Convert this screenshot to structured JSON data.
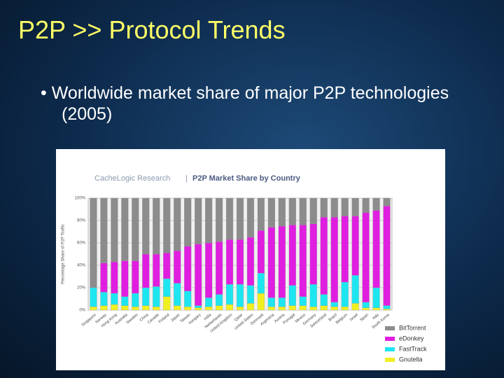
{
  "slide": {
    "title": "P2P >> Protocol Trends",
    "bullet": "Worldwide market share of major P2P technologies (2005)"
  },
  "chart_data": {
    "type": "stacked_bar",
    "source": "CacheLogic Research",
    "title": "P2P Market Share by Country",
    "y_label": "Percentage Share of P2P Traffic",
    "categories": [
      "Singapore",
      "Norway",
      "Hong Kong",
      "Australia",
      "Sweden",
      "China",
      "Canada",
      "Finland",
      "Japan",
      "Taiwan",
      "Hungary",
      "India",
      "Netherlands",
      "United Kingdom",
      "Qatar",
      "United States",
      "Denmark",
      "Argentina",
      "Austria",
      "Portugal",
      "Mexico",
      "Germany",
      "Switzerland",
      "Brazil",
      "Belgium",
      "Israel",
      "Spain",
      "Italy",
      "South Korea"
    ],
    "series": [
      {
        "name": "Gnutella",
        "color": "#f0f020",
        "values": [
          3,
          4,
          5,
          4,
          3,
          4,
          3,
          12,
          4,
          3,
          2,
          3,
          4,
          5,
          3,
          6,
          15,
          3,
          3,
          4,
          4,
          3,
          4,
          3,
          3,
          6,
          2,
          2,
          1
        ]
      },
      {
        "name": "FastTrack",
        "color": "#1ee6f0",
        "values": [
          17,
          12,
          10,
          8,
          12,
          16,
          18,
          16,
          20,
          14,
          2,
          8,
          10,
          18,
          20,
          16,
          18,
          8,
          8,
          18,
          8,
          20,
          10,
          4,
          22,
          25,
          5,
          18,
          3
        ]
      },
      {
        "name": "eDonkey",
        "color": "#e01ee0",
        "values": [
          0,
          26,
          28,
          32,
          29,
          30,
          29,
          23,
          29,
          40,
          55,
          49,
          47,
          40,
          40,
          43,
          38,
          63,
          64,
          54,
          64,
          54,
          69,
          76,
          59,
          53,
          80,
          69,
          89
        ]
      },
      {
        "name": "BitTorrent",
        "color": "#8c8c8c",
        "values": [
          80,
          58,
          57,
          56,
          56,
          50,
          50,
          49,
          47,
          43,
          41,
          40,
          39,
          37,
          37,
          35,
          29,
          26,
          25,
          24,
          24,
          23,
          17,
          17,
          16,
          16,
          13,
          11,
          7
        ]
      }
    ],
    "ylim": [
      0,
      100
    ],
    "yticks": [
      {
        "value": 0,
        "label": "0%"
      },
      {
        "value": 20,
        "label": "20%"
      },
      {
        "value": 40,
        "label": "40%"
      },
      {
        "value": 60,
        "label": "60%"
      },
      {
        "value": 80,
        "label": "80%"
      },
      {
        "value": 100,
        "label": "100%"
      }
    ],
    "grid": true,
    "legend": "lower right"
  }
}
